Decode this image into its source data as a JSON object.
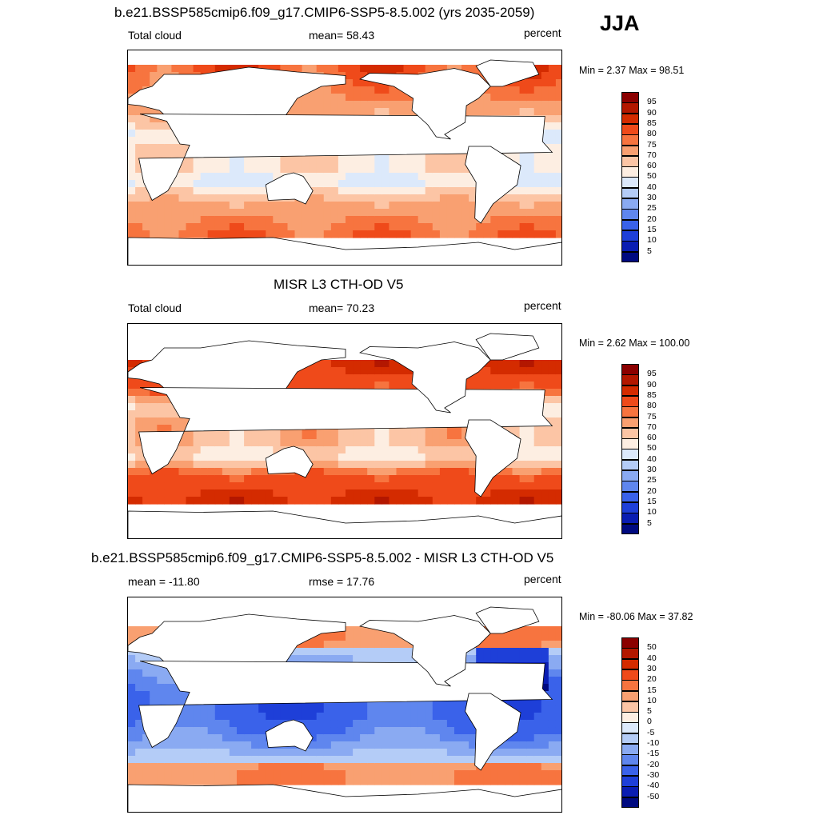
{
  "season": "JJA",
  "panels": [
    {
      "title": "b.e21.BSSP585cmip6.f09_g17.CMIP6-SSP5-8.5.002 (yrs 2035-2059)",
      "left_label": "Total cloud",
      "center_label": "mean=  58.43",
      "right_label": "percent",
      "minmax": "Min =   2.37 Max =  98.51",
      "kind": "model"
    },
    {
      "title": "MISR L3 CTH-OD V5",
      "left_label": "Total cloud",
      "center_label": "mean=  70.23",
      "right_label": "percent",
      "minmax": "Min =   2.62 Max = 100.00",
      "kind": "obs"
    },
    {
      "title": "b.e21.BSSP585cmip6.f09_g17.CMIP6-SSP5-8.5.002 - MISR L3 CTH-OD V5",
      "left_label": "mean = -11.80",
      "center_label": "rmse =  17.76",
      "right_label": "percent",
      "minmax": "Min = -80.06 Max =  37.82",
      "kind": "diff"
    }
  ],
  "colorbars": {
    "abs": {
      "labels": [
        "95",
        "90",
        "85",
        "80",
        "75",
        "70",
        "60",
        "50",
        "40",
        "30",
        "25",
        "20",
        "15",
        "10",
        "5"
      ],
      "colors": [
        "#8b0000",
        "#b31700",
        "#d42b00",
        "#ef4a1a",
        "#f7743f",
        "#f9a071",
        "#fcc5a5",
        "#fdeee2",
        "#dce9fb",
        "#b4ccf7",
        "#8aaaf2",
        "#5f86ee",
        "#3a62ea",
        "#1e3fd8",
        "#0a1db2",
        "#000a80"
      ]
    },
    "diff": {
      "labels": [
        "50",
        "40",
        "30",
        "20",
        "15",
        "10",
        "5",
        "0",
        "-5",
        "-10",
        "-15",
        "-20",
        "-30",
        "-40",
        "-50"
      ],
      "colors": [
        "#8b0000",
        "#b31700",
        "#d42b00",
        "#ef4a1a",
        "#f7743f",
        "#f9a071",
        "#fcc5a5",
        "#fdeee2",
        "#dce9fb",
        "#b4ccf7",
        "#8aaaf2",
        "#5f86ee",
        "#3a62ea",
        "#1e3fd8",
        "#0a1db2",
        "#000a80"
      ]
    }
  }
}
